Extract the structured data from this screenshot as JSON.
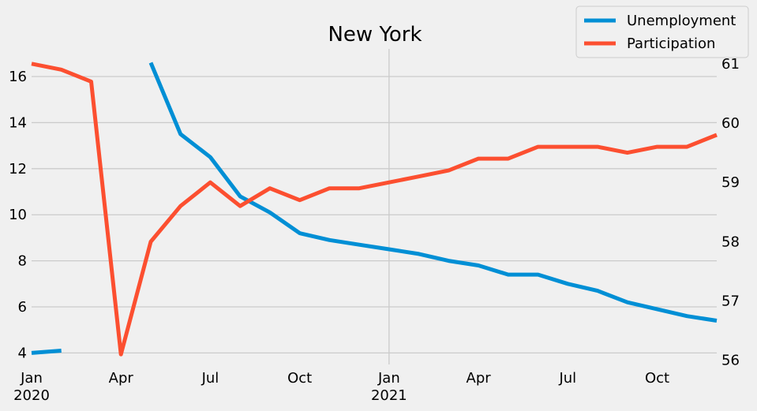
{
  "chart_data": {
    "type": "line",
    "title": "New York",
    "x": [
      "2020-01",
      "2020-02",
      "2020-03",
      "2020-04",
      "2020-05",
      "2020-06",
      "2020-07",
      "2020-08",
      "2020-09",
      "2020-10",
      "2020-11",
      "2020-12",
      "2021-01",
      "2021-02",
      "2021-03",
      "2021-04",
      "2021-05",
      "2021-06",
      "2021-07",
      "2021-08",
      "2021-09",
      "2021-10",
      "2021-11",
      "2021-12"
    ],
    "x_ticks": [
      {
        "x": "2020-01",
        "label": "Jan",
        "sublabel": "2020"
      },
      {
        "x": "2020-04",
        "label": "Apr",
        "sublabel": ""
      },
      {
        "x": "2020-07",
        "label": "Jul",
        "sublabel": ""
      },
      {
        "x": "2020-10",
        "label": "Oct",
        "sublabel": ""
      },
      {
        "x": "2021-01",
        "label": "Jan",
        "sublabel": "2021"
      },
      {
        "x": "2021-04",
        "label": "Apr",
        "sublabel": ""
      },
      {
        "x": "2021-07",
        "label": "Jul",
        "sublabel": ""
      },
      {
        "x": "2021-10",
        "label": "Oct",
        "sublabel": ""
      }
    ],
    "y_left": {
      "ticks": [
        4,
        6,
        8,
        10,
        12,
        14,
        16
      ],
      "range": [
        3.5,
        17.2
      ]
    },
    "y_right": {
      "ticks": [
        56,
        57,
        58,
        59,
        60,
        61
      ],
      "range": [
        55.93,
        61.25
      ]
    },
    "grid": true,
    "legend_position": "top-right",
    "series": [
      {
        "name": "Unemployment",
        "axis": "left",
        "color": "#008fd5",
        "values": [
          4.0,
          4.1,
          null,
          null,
          16.6,
          13.5,
          12.5,
          10.8,
          10.1,
          9.2,
          8.9,
          8.7,
          8.5,
          8.3,
          8.0,
          7.8,
          7.4,
          7.4,
          7.0,
          6.7,
          6.2,
          5.9,
          5.6,
          5.4
        ]
      },
      {
        "name": "Participation",
        "axis": "right",
        "color": "#fc4f30",
        "values": [
          61.0,
          60.9,
          60.7,
          56.1,
          58.0,
          58.6,
          59.0,
          58.6,
          58.9,
          58.7,
          58.9,
          58.9,
          59.0,
          59.1,
          59.2,
          59.4,
          59.4,
          59.6,
          59.6,
          59.6,
          59.5,
          59.6,
          59.6,
          59.8
        ]
      }
    ]
  }
}
